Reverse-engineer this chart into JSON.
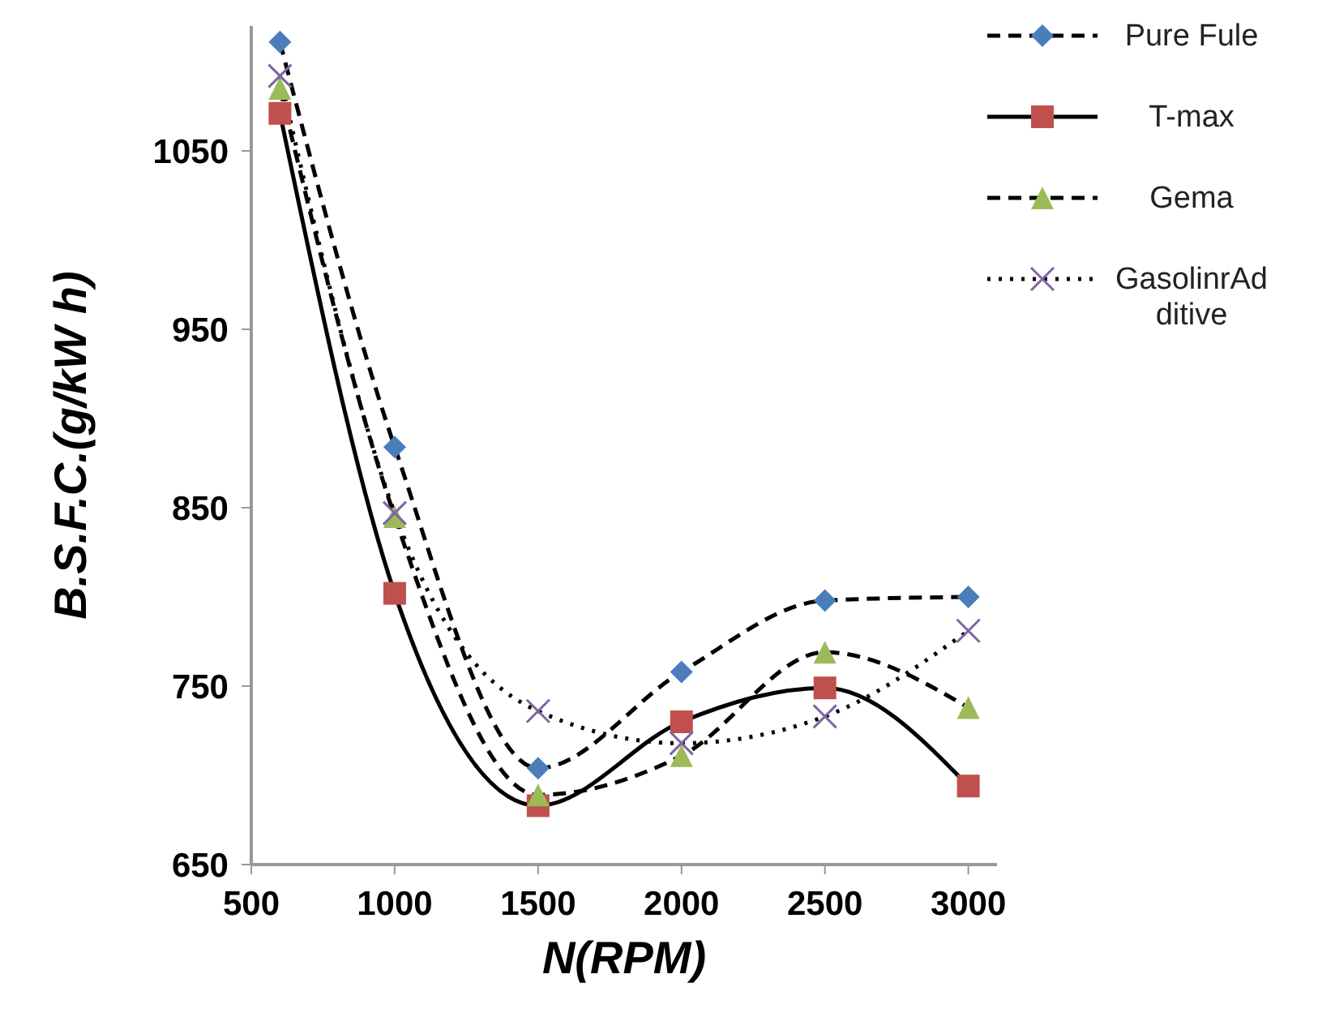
{
  "chart_data": {
    "type": "line",
    "xlabel": "N(RPM)",
    "ylabel": "B.S.F.C.(g/kW h)",
    "x": [
      600,
      1000,
      1500,
      2000,
      2500,
      3000
    ],
    "xlim": [
      500,
      3100
    ],
    "xticks": [
      500,
      1000,
      1500,
      2000,
      2500,
      3000
    ],
    "ylim": [
      650,
      1120
    ],
    "yticks": [
      650,
      750,
      850,
      950,
      1050
    ],
    "grid": false,
    "legend": "top right",
    "series": [
      {
        "name": "Pure Fule",
        "color": "#4a7ebb",
        "marker": "diamond",
        "line_style": "dashed",
        "values": [
          1111,
          884,
          704,
          758,
          798,
          800
        ]
      },
      {
        "name": "T-max",
        "color": "#c0504d",
        "marker": "square",
        "line_style": "solid",
        "values": [
          1071,
          802,
          683,
          730,
          749,
          694
        ]
      },
      {
        "name": "Gema",
        "color": "#9bbb59",
        "marker": "triangle",
        "line_style": "dashed",
        "values": [
          1085,
          845,
          689,
          711,
          769,
          738
        ]
      },
      {
        "name": "GasolinrAdditive",
        "color": "#8064a2",
        "marker": "cross",
        "line_style": "dotted",
        "values": [
          1092,
          847,
          736,
          718,
          733,
          781
        ]
      }
    ]
  }
}
